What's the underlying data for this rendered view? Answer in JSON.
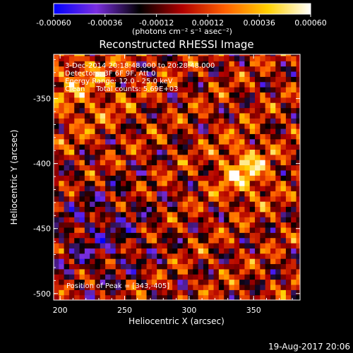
{
  "chart_data": {
    "type": "heatmap",
    "title": "Reconstructed RHESSI Image",
    "xlabel": "Heliocentric X (arcsec)",
    "ylabel": "Heliocentric Y (arcsec)",
    "xlim": [
      195,
      386
    ],
    "ylim": [
      -505,
      -316
    ],
    "x_ticks": [
      200,
      250,
      300,
      350
    ],
    "y_ticks": [
      -350,
      -400,
      -450,
      -500
    ],
    "annotations": [
      "3-Dec-2014 20:18:48.000 to 20:28:48.000",
      "Detectors: 3F 6F 9F, Att 0",
      "Energy Range: 12.0 - 25.0 keV",
      "Clean     Total counts: 5.69E+03"
    ],
    "peak_label": "Position of Peak = [343,-405]",
    "colorbar": {
      "range": [
        -0.0006,
        0.0006
      ],
      "tick_labels": [
        "-0.00060",
        "-0.00036",
        "-0.00012",
        "0.00012",
        "0.00036",
        "0.00060"
      ],
      "unit_label": "(photons cm⁻² s⁻¹ asec⁻²)",
      "colors": [
        "#0000ff",
        "#7a2ee0",
        "#000000",
        "#b00000",
        "#ff6000",
        "#ffd000",
        "#ffffff"
      ]
    },
    "grid": false
  },
  "footer": {
    "timestamp": "19-Aug-2017 20:06"
  }
}
